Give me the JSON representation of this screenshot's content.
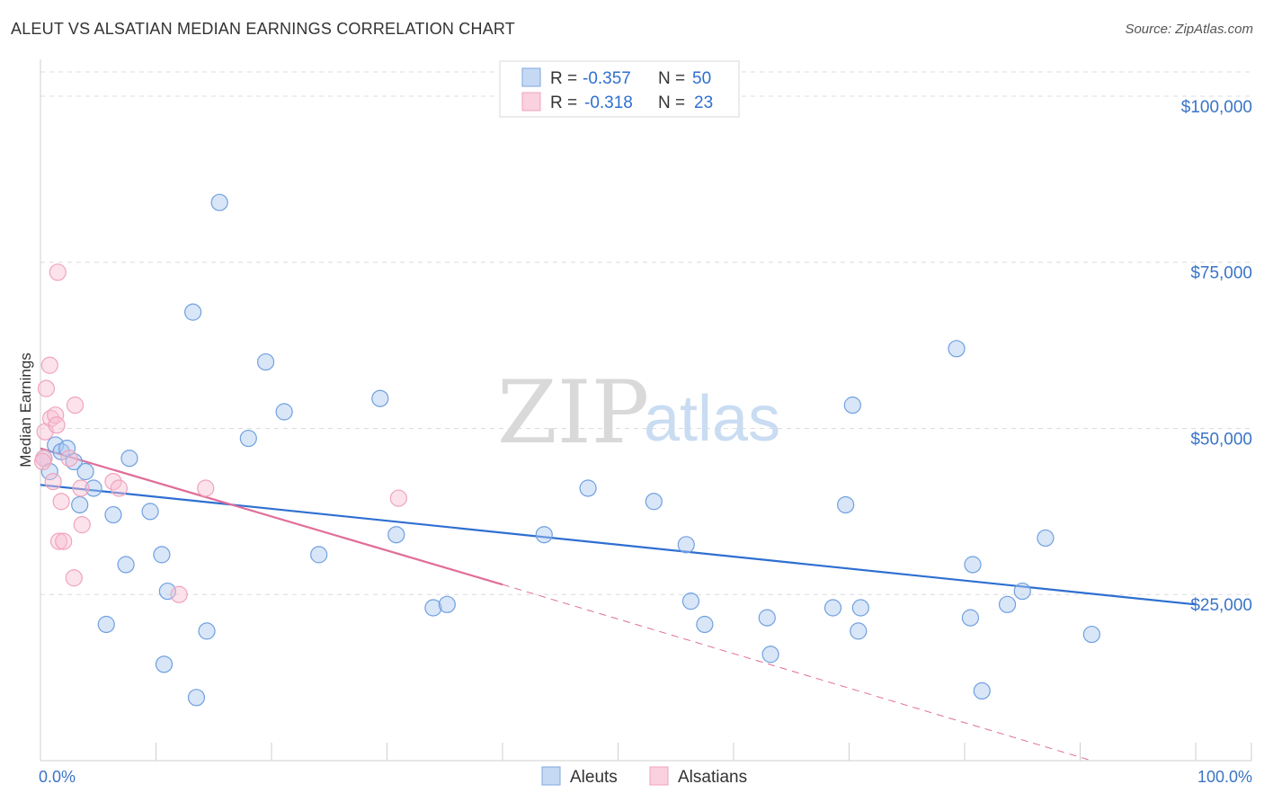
{
  "title": "ALEUT VS ALSATIAN MEDIAN EARNINGS CORRELATION CHART",
  "source": "Source: ZipAtlas.com",
  "watermark": {
    "left": "ZIP",
    "right": "atlas"
  },
  "colors": {
    "aleut": "#6fa0e0",
    "aleut_line": "#2e6fd1",
    "alsatian": "#f0a3bc",
    "alsatian_line": "#e06d99",
    "tick_text": "#3a74c6"
  },
  "chart_data": {
    "type": "scatter",
    "title": "ALEUT VS ALSATIAN MEDIAN EARNINGS CORRELATION CHART",
    "ylabel": "Median Earnings",
    "xlabel": "",
    "xlim": [
      0,
      100
    ],
    "ylim": [
      0,
      105000
    ],
    "x_tick_labels": [
      "0.0%",
      "100.0%"
    ],
    "y_ticks": [
      {
        "value": 25000,
        "label": "$25,000"
      },
      {
        "value": 50000,
        "label": "$50,000"
      },
      {
        "value": 75000,
        "label": "$75,000"
      },
      {
        "value": 100000,
        "label": "$100,000"
      }
    ],
    "legend": [
      {
        "r_label": "R =",
        "r": "-0.357",
        "n_label": "N =",
        "n": "50"
      },
      {
        "r_label": "R =",
        "r": "-0.318",
        "n_label": "N =",
        "n": "23"
      }
    ],
    "series": [
      {
        "name": "Aleuts",
        "points": [
          [
            0.3,
            45500
          ],
          [
            0.8,
            43500
          ],
          [
            1.3,
            47500
          ],
          [
            1.8,
            46500
          ],
          [
            2.3,
            47000
          ],
          [
            2.9,
            45000
          ],
          [
            3.4,
            38500
          ],
          [
            3.9,
            43500
          ],
          [
            4.6,
            41000
          ],
          [
            5.7,
            20500
          ],
          [
            6.3,
            37000
          ],
          [
            7.4,
            29500
          ],
          [
            7.7,
            45500
          ],
          [
            9.5,
            37500
          ],
          [
            10.5,
            31000
          ],
          [
            10.7,
            14500
          ],
          [
            11.0,
            25500
          ],
          [
            13.2,
            67500
          ],
          [
            13.5,
            9500
          ],
          [
            14.4,
            19500
          ],
          [
            15.5,
            84000
          ],
          [
            18.0,
            48500
          ],
          [
            19.5,
            60000
          ],
          [
            21.1,
            52500
          ],
          [
            24.1,
            31000
          ],
          [
            29.4,
            54500
          ],
          [
            30.8,
            34000
          ],
          [
            34.0,
            23000
          ],
          [
            35.2,
            23500
          ],
          [
            43.6,
            34000
          ],
          [
            47.4,
            41000
          ],
          [
            53.1,
            39000
          ],
          [
            55.9,
            32500
          ],
          [
            56.3,
            24000
          ],
          [
            57.5,
            20500
          ],
          [
            62.9,
            21500
          ],
          [
            63.2,
            16000
          ],
          [
            68.6,
            23000
          ],
          [
            69.7,
            38500
          ],
          [
            70.3,
            53500
          ],
          [
            70.8,
            19500
          ],
          [
            71.0,
            23000
          ],
          [
            79.3,
            62000
          ],
          [
            80.5,
            21500
          ],
          [
            80.7,
            29500
          ],
          [
            81.5,
            10500
          ],
          [
            83.7,
            23500
          ],
          [
            85.0,
            25500
          ],
          [
            87.0,
            33500
          ],
          [
            91.0,
            19000
          ]
        ],
        "trend": {
          "x": [
            0,
            100
          ],
          "y": [
            41500,
            23500
          ],
          "style": "solid"
        }
      },
      {
        "name": "Alsatians",
        "points": [
          [
            0.3,
            45500
          ],
          [
            0.4,
            49500
          ],
          [
            0.5,
            56000
          ],
          [
            0.8,
            59500
          ],
          [
            0.9,
            51500
          ],
          [
            1.1,
            42000
          ],
          [
            1.3,
            52000
          ],
          [
            1.4,
            50500
          ],
          [
            1.5,
            73500
          ],
          [
            1.6,
            33000
          ],
          [
            1.8,
            39000
          ],
          [
            2.0,
            33000
          ],
          [
            2.5,
            45500
          ],
          [
            2.9,
            27500
          ],
          [
            3.0,
            53500
          ],
          [
            3.5,
            41000
          ],
          [
            3.6,
            35500
          ],
          [
            6.3,
            42000
          ],
          [
            6.8,
            41000
          ],
          [
            12.0,
            25000
          ],
          [
            14.3,
            41000
          ],
          [
            31.0,
            39500
          ],
          [
            0.2,
            45000
          ]
        ],
        "trend": {
          "x": [
            0,
            40
          ],
          "y": [
            47000,
            26500
          ],
          "style": "solid"
        },
        "trend_extension": {
          "x": [
            40,
            91
          ],
          "y": [
            26500,
            0
          ],
          "style": "dashed"
        }
      }
    ]
  }
}
